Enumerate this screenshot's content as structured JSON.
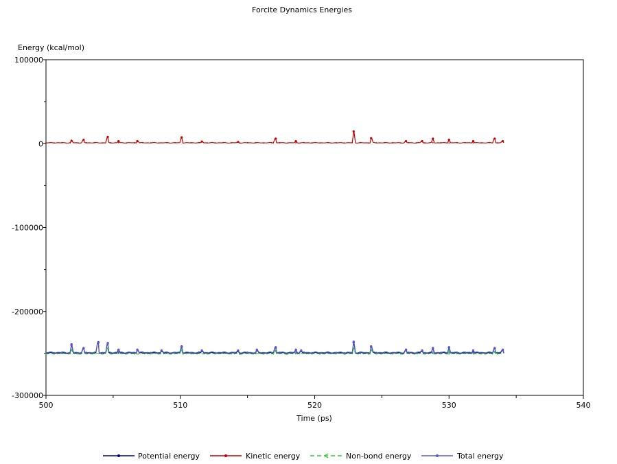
{
  "chart_data": {
    "type": "line",
    "title": "Forcite Dynamics Energies",
    "xlabel": "Time (ps)",
    "ylabel": "Energy (kcal/mol)",
    "xlim": [
      500,
      540
    ],
    "ylim": [
      -300000,
      100000
    ],
    "xticks": [
      500,
      510,
      520,
      530,
      540
    ],
    "yticks": [
      100000,
      0,
      -100000,
      -200000,
      -300000
    ],
    "xtick_labels": [
      "500",
      "510",
      "520",
      "530",
      "540"
    ],
    "ytick_labels": [
      "100000",
      "0",
      "-100000",
      "-200000",
      "-300000"
    ],
    "grid": false,
    "legend_position": "bottom",
    "x_range_data": [
      500,
      534.1
    ],
    "series": [
      {
        "name": "Potential energy",
        "color": "#000080",
        "marker": "dot",
        "baseline": -249500,
        "spikes": [
          [
            501.9,
            -240000
          ],
          [
            502.8,
            -244000
          ],
          [
            503.9,
            -237000
          ],
          [
            504.6,
            -238000
          ],
          [
            505.4,
            -246000
          ],
          [
            506.8,
            -246000
          ],
          [
            508.6,
            -247000
          ],
          [
            510.1,
            -242000
          ],
          [
            511.6,
            -247000
          ],
          [
            514.3,
            -247000
          ],
          [
            515.7,
            -246000
          ],
          [
            517.1,
            -243000
          ],
          [
            518.6,
            -246000
          ],
          [
            519.0,
            -247000
          ],
          [
            522.9,
            -237000
          ],
          [
            524.2,
            -242000
          ],
          [
            526.8,
            -246000
          ],
          [
            528.0,
            -247000
          ],
          [
            528.8,
            -244000
          ],
          [
            530.0,
            -243000
          ],
          [
            531.8,
            -247000
          ],
          [
            533.4,
            -244000
          ],
          [
            534.0,
            -246000
          ]
        ]
      },
      {
        "name": "Kinetic energy",
        "color": "#c00000",
        "marker": "dot",
        "baseline": 1000,
        "spikes": [
          [
            501.9,
            3500
          ],
          [
            502.8,
            4500
          ],
          [
            504.6,
            8000
          ],
          [
            505.4,
            3000
          ],
          [
            506.8,
            3000
          ],
          [
            510.1,
            7500
          ],
          [
            511.6,
            2500
          ],
          [
            514.3,
            2000
          ],
          [
            517.1,
            6000
          ],
          [
            518.6,
            3000
          ],
          [
            522.9,
            14500
          ],
          [
            524.2,
            6500
          ],
          [
            526.8,
            3000
          ],
          [
            528.0,
            3000
          ],
          [
            528.8,
            6000
          ],
          [
            530.0,
            4500
          ],
          [
            531.8,
            3000
          ],
          [
            533.4,
            6000
          ],
          [
            534.0,
            3000
          ]
        ]
      },
      {
        "name": "Non-bond energy",
        "color": "#33cc33",
        "marker": "arrow",
        "dashed": true,
        "baseline": -250500,
        "spikes": [
          [
            501.9,
            -246000
          ],
          [
            504.6,
            -244000
          ],
          [
            510.1,
            -246000
          ],
          [
            517.1,
            -247000
          ],
          [
            522.9,
            -244000
          ],
          [
            524.2,
            -246000
          ],
          [
            530.0,
            -247000
          ],
          [
            533.4,
            -248000
          ]
        ]
      },
      {
        "name": "Total energy",
        "color": "#5a5acc",
        "marker": "dot",
        "baseline": -248800,
        "spikes": [
          [
            501.9,
            -239000
          ],
          [
            502.8,
            -243500
          ],
          [
            503.9,
            -236500
          ],
          [
            504.6,
            -237500
          ],
          [
            505.4,
            -245500
          ],
          [
            506.8,
            -245500
          ],
          [
            508.6,
            -246500
          ],
          [
            510.1,
            -241500
          ],
          [
            511.6,
            -246500
          ],
          [
            514.3,
            -246500
          ],
          [
            515.7,
            -245500
          ],
          [
            517.1,
            -242500
          ],
          [
            518.6,
            -245500
          ],
          [
            519.0,
            -246500
          ],
          [
            522.9,
            -236000
          ],
          [
            524.2,
            -241500
          ],
          [
            526.8,
            -245500
          ],
          [
            528.0,
            -246500
          ],
          [
            528.8,
            -243500
          ],
          [
            530.0,
            -242500
          ],
          [
            531.8,
            -246500
          ],
          [
            533.4,
            -243500
          ],
          [
            534.0,
            -245500
          ]
        ]
      }
    ]
  }
}
